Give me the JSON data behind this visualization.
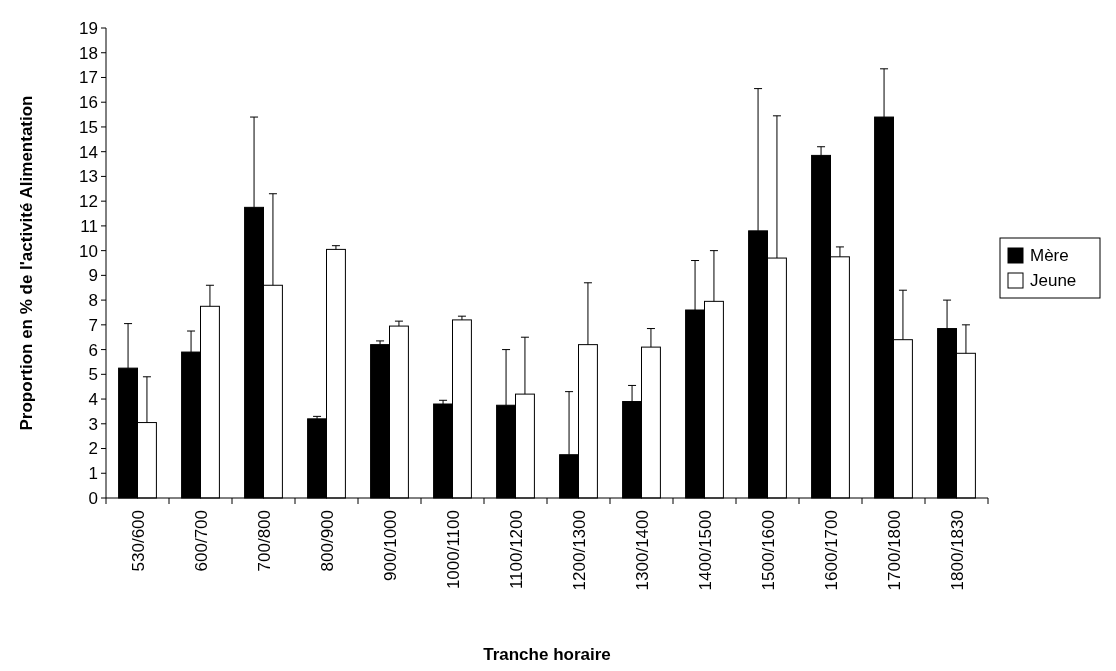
{
  "chart_data": {
    "type": "bar",
    "xlabel": "Tranche horaire",
    "ylabel": "Proportion en % de l'activité Alimentation",
    "categories": [
      "530/600",
      "600/700",
      "700/800",
      "800/900",
      "900/1000",
      "1000/1100",
      "1100/1200",
      "1200/1300",
      "1300/1400",
      "1400/1500",
      "1500/1600",
      "1600/1700",
      "1700/1800",
      "1800/1830"
    ],
    "series": [
      {
        "name": "Mère",
        "color": "#000000",
        "values": [
          5.25,
          5.9,
          11.75,
          3.2,
          6.2,
          3.8,
          3.75,
          1.75,
          3.9,
          7.6,
          10.8,
          13.85,
          15.4,
          6.85
        ],
        "errors": [
          [
            5.25,
            7.05
          ],
          [
            5.9,
            6.75
          ],
          [
            11.75,
            15.4
          ],
          [
            3.2,
            3.3
          ],
          [
            6.2,
            6.35
          ],
          [
            3.8,
            3.95
          ],
          [
            3.75,
            6.0
          ],
          [
            1.75,
            4.3
          ],
          [
            3.9,
            4.55
          ],
          [
            7.6,
            9.6
          ],
          [
            10.8,
            16.55
          ],
          [
            13.85,
            14.2
          ],
          [
            15.4,
            17.35
          ],
          [
            6.85,
            8.0
          ]
        ]
      },
      {
        "name": "Jeune",
        "color": "#ffffff",
        "values": [
          3.05,
          7.75,
          8.6,
          10.05,
          6.95,
          7.2,
          4.2,
          6.2,
          6.1,
          7.95,
          9.7,
          9.75,
          6.4,
          5.85
        ],
        "errors": [
          [
            3.05,
            4.9
          ],
          [
            7.75,
            8.6
          ],
          [
            8.6,
            12.3
          ],
          [
            10.05,
            10.2
          ],
          [
            6.95,
            7.15
          ],
          [
            7.2,
            7.35
          ],
          [
            4.2,
            6.5
          ],
          [
            6.2,
            8.7
          ],
          [
            6.1,
            6.85
          ],
          [
            7.95,
            10.0
          ],
          [
            9.7,
            15.45
          ],
          [
            9.75,
            10.15
          ],
          [
            6.4,
            8.4
          ],
          [
            5.85,
            7.0
          ]
        ]
      }
    ],
    "ylim": [
      0,
      19
    ],
    "yticks": [
      0,
      1,
      2,
      3,
      4,
      5,
      6,
      7,
      8,
      9,
      10,
      11,
      12,
      13,
      14,
      15,
      16,
      17,
      18,
      19
    ],
    "grid": false,
    "legend": "right"
  }
}
